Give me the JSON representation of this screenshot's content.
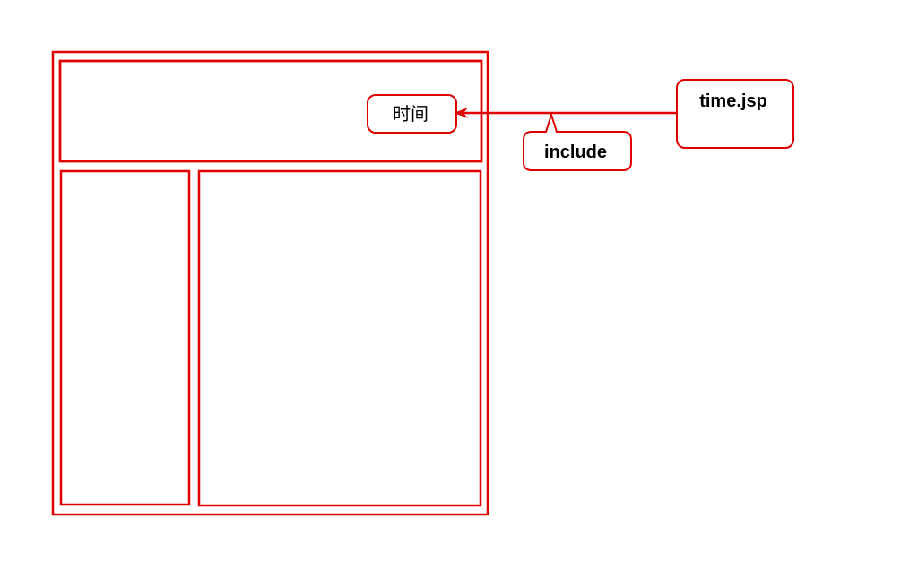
{
  "diagram": {
    "time_label": "时间",
    "source_file_label": "time.jsp",
    "relation_label": "include"
  },
  "colors": {
    "stroke": "#e00000",
    "text": "#000000",
    "background": "#ffffff"
  }
}
